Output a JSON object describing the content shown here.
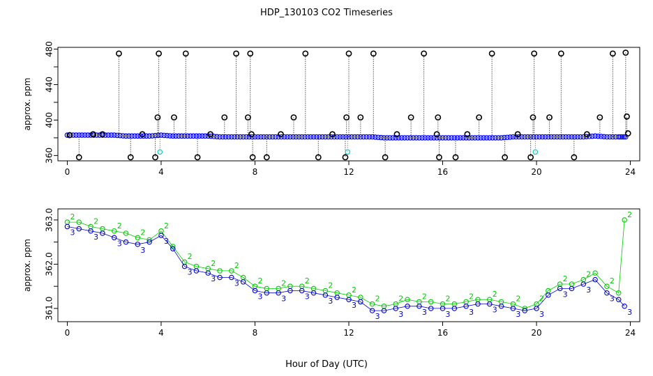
{
  "title": "HDP_130103  CO2 Timeseries",
  "xlabel": "Hour of Day (UTC)",
  "chart_data": [
    {
      "type": "scatter",
      "title": "HDP_130103  CO2 Timeseries",
      "ylabel": "approx. ppm",
      "xlabel": "",
      "xlim": [
        -0.4,
        24.4
      ],
      "ylim": [
        354,
        482
      ],
      "xticks": [
        0,
        4,
        8,
        12,
        16,
        20,
        24
      ],
      "yticks": [
        360,
        400,
        440,
        480
      ],
      "yticks_minor": [
        380,
        420,
        460
      ],
      "grid": false,
      "colors": {
        "baseline": "#0000ff",
        "spike": "#000000",
        "low_cyan": "#00cccc"
      },
      "series": [
        {
          "marker": "circle",
          "color": "#0000ff",
          "x": [
            0.0,
            0.5,
            1.0,
            1.5,
            2.0,
            2.5,
            3.0,
            3.5,
            4.0,
            4.5,
            5.0,
            5.5,
            6.0,
            6.5,
            7.0,
            7.5,
            8.0,
            8.5,
            9.0,
            9.5,
            10.0,
            10.5,
            11.0,
            11.5,
            12.0,
            12.5,
            13.0,
            13.5,
            14.0,
            14.5,
            15.0,
            15.5,
            16.0,
            16.5,
            17.0,
            17.5,
            18.0,
            18.5,
            19.0,
            19.5,
            20.0,
            20.5,
            21.0,
            21.5,
            22.0,
            22.5,
            23.0,
            23.5,
            23.8
          ],
          "y": [
            383,
            383,
            383,
            383,
            383,
            382,
            382,
            382,
            383,
            382,
            382,
            382,
            382,
            381,
            381,
            381,
            381,
            381,
            381,
            381,
            381,
            381,
            381,
            381,
            381,
            381,
            381,
            380,
            380,
            380,
            380,
            380,
            380,
            380,
            380,
            380,
            380,
            380,
            381,
            381,
            381,
            381,
            381,
            381,
            381,
            382,
            381,
            381,
            381
          ]
        },
        {
          "marker": "circle",
          "color": "#000000",
          "x": [
            0.1,
            0.5,
            1.1,
            1.5,
            2.2,
            2.7,
            3.2,
            3.75,
            3.85,
            3.9,
            4.55,
            5.05,
            5.55,
            6.1,
            6.7,
            7.2,
            7.7,
            7.8,
            7.85,
            7.9,
            8.5,
            9.1,
            9.65,
            10.15,
            10.7,
            11.3,
            11.85,
            11.9,
            12.0,
            12.5,
            13.05,
            13.55,
            14.05,
            14.65,
            15.2,
            15.75,
            15.8,
            15.85,
            16.55,
            17.05,
            17.55,
            18.1,
            18.65,
            19.2,
            19.75,
            19.85,
            19.9,
            20.55,
            21.05,
            21.6,
            22.15,
            22.7,
            23.25,
            23.8,
            23.85,
            23.9
          ],
          "y": [
            383,
            358,
            384,
            384,
            475,
            358,
            384,
            358,
            403,
            475,
            403,
            475,
            358,
            384,
            403,
            475,
            403,
            475,
            384,
            358,
            358,
            384,
            403,
            475,
            358,
            384,
            358,
            403,
            475,
            403,
            475,
            358,
            384,
            403,
            475,
            384,
            403,
            358,
            358,
            384,
            403,
            475,
            358,
            384,
            358,
            403,
            475,
            403,
            475,
            358,
            384,
            403,
            475,
            476,
            404,
            385
          ]
        },
        {
          "marker": "circle",
          "color": "#00cccc",
          "x": [
            3.95,
            11.95,
            19.95
          ],
          "y": [
            364,
            364,
            364
          ]
        }
      ]
    },
    {
      "type": "line",
      "title": "",
      "ylabel": "approx. ppm",
      "xlabel": "Hour of Day (UTC)",
      "xlim": [
        -0.4,
        24.4
      ],
      "ylim": [
        360.7,
        363.25
      ],
      "xticks": [
        0,
        4,
        8,
        12,
        16,
        20,
        24
      ],
      "yticks": [
        361.0,
        362.0,
        363.0
      ],
      "yticks_minor": [
        361.5,
        362.5
      ],
      "grid": false,
      "series": [
        {
          "name": "2",
          "color": "#00cc00",
          "x": [
            0.0,
            0.5,
            1.0,
            1.5,
            2.0,
            2.5,
            3.0,
            3.5,
            4.0,
            4.5,
            5.0,
            5.5,
            6.0,
            6.5,
            7.0,
            7.5,
            8.0,
            8.5,
            9.0,
            9.5,
            10.0,
            10.5,
            11.0,
            11.5,
            12.0,
            12.5,
            13.0,
            13.5,
            14.0,
            14.5,
            15.0,
            15.5,
            16.0,
            16.5,
            17.0,
            17.5,
            18.0,
            18.5,
            19.0,
            19.5,
            20.0,
            20.5,
            21.0,
            21.5,
            22.0,
            22.5,
            23.0,
            23.5,
            23.75
          ],
          "y": [
            362.95,
            362.95,
            362.85,
            362.8,
            362.75,
            362.7,
            362.6,
            362.55,
            362.75,
            362.4,
            362.05,
            361.95,
            361.9,
            361.85,
            361.85,
            361.7,
            361.5,
            361.45,
            361.45,
            361.5,
            361.5,
            361.45,
            361.4,
            361.35,
            361.3,
            361.25,
            361.1,
            361.05,
            361.1,
            361.2,
            361.15,
            361.15,
            361.1,
            361.1,
            361.15,
            361.2,
            361.2,
            361.15,
            361.1,
            361.0,
            361.1,
            361.4,
            361.55,
            361.55,
            361.65,
            361.8,
            361.5,
            361.35,
            363.0
          ]
        },
        {
          "name": "3",
          "color": "#0000cc",
          "x": [
            0.0,
            0.5,
            1.0,
            1.5,
            2.0,
            2.5,
            3.0,
            3.5,
            4.0,
            4.5,
            5.0,
            5.5,
            6.0,
            6.5,
            7.0,
            7.5,
            8.0,
            8.5,
            9.0,
            9.5,
            10.0,
            10.5,
            11.0,
            11.5,
            12.0,
            12.5,
            13.0,
            13.5,
            14.0,
            14.5,
            15.0,
            15.5,
            16.0,
            16.5,
            17.0,
            17.5,
            18.0,
            18.5,
            19.0,
            19.5,
            20.0,
            20.5,
            21.0,
            21.5,
            22.0,
            22.5,
            23.0,
            23.5,
            23.75
          ],
          "y": [
            362.85,
            362.8,
            362.75,
            362.7,
            362.6,
            362.5,
            362.45,
            362.5,
            362.65,
            362.35,
            361.95,
            361.85,
            361.8,
            361.7,
            361.7,
            361.6,
            361.4,
            361.35,
            361.35,
            361.4,
            361.4,
            361.35,
            361.3,
            361.25,
            361.2,
            361.15,
            360.95,
            360.95,
            361.0,
            361.05,
            361.05,
            361.0,
            361.0,
            361.0,
            361.05,
            361.1,
            361.1,
            361.05,
            361.0,
            360.95,
            361.0,
            361.3,
            361.45,
            361.45,
            361.55,
            361.65,
            361.35,
            361.2,
            361.05
          ]
        }
      ]
    }
  ]
}
